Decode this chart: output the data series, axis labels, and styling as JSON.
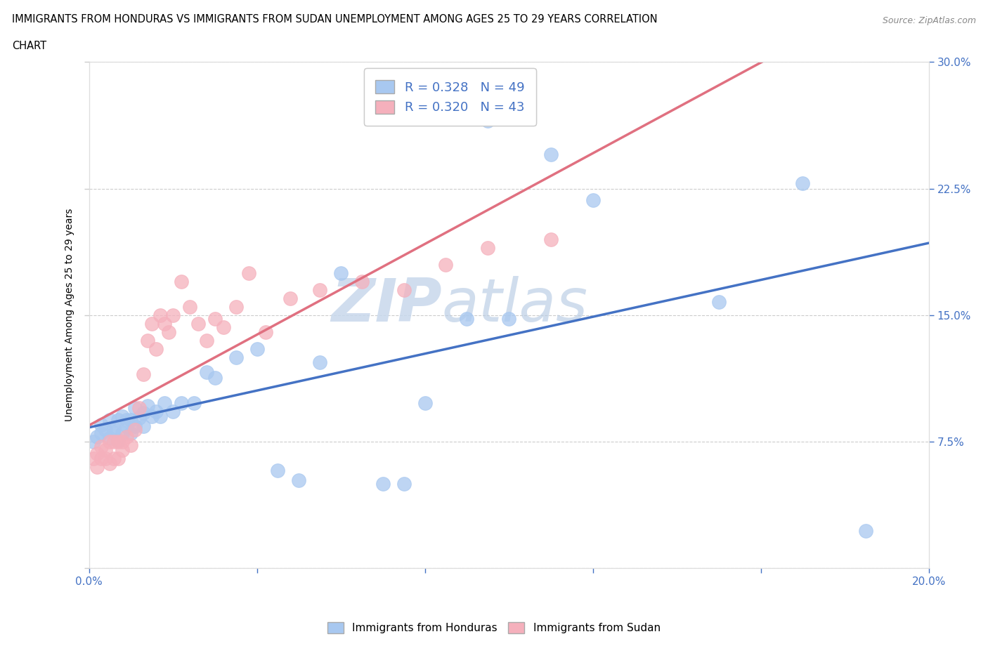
{
  "title_line1": "IMMIGRANTS FROM HONDURAS VS IMMIGRANTS FROM SUDAN UNEMPLOYMENT AMONG AGES 25 TO 29 YEARS CORRELATION",
  "title_line2": "CHART",
  "source": "Source: ZipAtlas.com",
  "ylabel": "Unemployment Among Ages 25 to 29 years",
  "xlim": [
    0.0,
    0.2
  ],
  "ylim": [
    0.0,
    0.3
  ],
  "xticks": [
    0.0,
    0.04,
    0.08,
    0.12,
    0.16,
    0.2
  ],
  "yticks": [
    0.075,
    0.15,
    0.225,
    0.3
  ],
  "ytick_labels": [
    "7.5%",
    "15.0%",
    "22.5%",
    "30.0%"
  ],
  "legend_r1": "R = 0.328",
  "legend_n1": "N = 49",
  "legend_r2": "R = 0.320",
  "legend_n2": "N = 43",
  "color_honduras": "#a8c8f0",
  "color_sudan": "#f5b0bc",
  "trendline_color_honduras": "#4472c4",
  "trendline_color_sudan": "#e07080",
  "watermark": "ZIPatlas",
  "honduras_x": [
    0.001,
    0.002,
    0.003,
    0.003,
    0.004,
    0.005,
    0.005,
    0.006,
    0.006,
    0.007,
    0.007,
    0.008,
    0.008,
    0.009,
    0.009,
    0.01,
    0.01,
    0.011,
    0.011,
    0.012,
    0.013,
    0.013,
    0.014,
    0.015,
    0.016,
    0.017,
    0.018,
    0.02,
    0.022,
    0.025,
    0.028,
    0.03,
    0.035,
    0.04,
    0.045,
    0.05,
    0.055,
    0.06,
    0.07,
    0.075,
    0.08,
    0.09,
    0.095,
    0.1,
    0.11,
    0.12,
    0.15,
    0.17,
    0.185
  ],
  "honduras_y": [
    0.075,
    0.078,
    0.08,
    0.085,
    0.082,
    0.077,
    0.088,
    0.08,
    0.083,
    0.076,
    0.088,
    0.08,
    0.09,
    0.084,
    0.088,
    0.08,
    0.088,
    0.084,
    0.095,
    0.089,
    0.092,
    0.084,
    0.096,
    0.09,
    0.093,
    0.09,
    0.098,
    0.093,
    0.098,
    0.098,
    0.116,
    0.113,
    0.125,
    0.13,
    0.058,
    0.052,
    0.122,
    0.175,
    0.05,
    0.05,
    0.098,
    0.148,
    0.265,
    0.148,
    0.245,
    0.218,
    0.158,
    0.228,
    0.022
  ],
  "sudan_x": [
    0.001,
    0.002,
    0.002,
    0.003,
    0.003,
    0.004,
    0.004,
    0.005,
    0.005,
    0.006,
    0.006,
    0.007,
    0.007,
    0.008,
    0.008,
    0.009,
    0.01,
    0.011,
    0.012,
    0.013,
    0.014,
    0.015,
    0.016,
    0.017,
    0.018,
    0.019,
    0.02,
    0.022,
    0.024,
    0.026,
    0.028,
    0.03,
    0.032,
    0.035,
    0.038,
    0.042,
    0.048,
    0.055,
    0.065,
    0.075,
    0.085,
    0.095,
    0.11
  ],
  "sudan_y": [
    0.065,
    0.06,
    0.068,
    0.065,
    0.072,
    0.065,
    0.07,
    0.062,
    0.075,
    0.065,
    0.075,
    0.065,
    0.075,
    0.07,
    0.075,
    0.078,
    0.073,
    0.082,
    0.095,
    0.115,
    0.135,
    0.145,
    0.13,
    0.15,
    0.145,
    0.14,
    0.15,
    0.17,
    0.155,
    0.145,
    0.135,
    0.148,
    0.143,
    0.155,
    0.175,
    0.14,
    0.16,
    0.165,
    0.17,
    0.165,
    0.18,
    0.19,
    0.195
  ]
}
